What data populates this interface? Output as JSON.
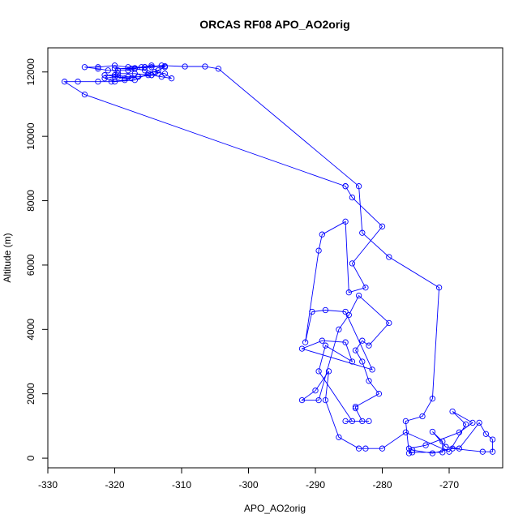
{
  "chart_data": {
    "type": "scatter",
    "title": "ORCAS RF08 APO_AO2orig",
    "xlabel": "APO_AO2orig",
    "ylabel": "Altitude (m)",
    "xlim": [
      -330,
      -262
    ],
    "ylim": [
      -300,
      12750
    ],
    "x_ticks": [
      -330,
      -320,
      -310,
      -300,
      -290,
      -280,
      -270
    ],
    "y_ticks": [
      0,
      2000,
      4000,
      6000,
      8000,
      10000,
      12000
    ],
    "grid": false,
    "legend": "none",
    "line_color": "#0000ff",
    "marker_color": "#0000ff",
    "marker": "open-circle",
    "connected": true,
    "series": [
      {
        "x": [
          -312.5,
          -315.5,
          -317.5,
          -320.0,
          -317.0,
          -314.5,
          -315.5,
          -313.0,
          -309.5,
          -306.5,
          -304.5,
          -283.5,
          -283.0,
          -279.0,
          -271.5,
          -272.5,
          -274.0,
          -276.5,
          -276.0,
          -275.5,
          -271.0,
          -271.0,
          -272.5,
          -270.5,
          -268.5,
          -265.5,
          -264.5,
          -263.5,
          -263.5,
          -265.0,
          -269.5,
          -272.5,
          -275.5,
          -276.0,
          -273.5,
          -268.5,
          -266.5,
          -269.5,
          -267.5,
          -270.0,
          -276.5,
          -280.0,
          -282.5,
          -283.5,
          -286.5,
          -288.5,
          -288.0,
          -290.0,
          -292.0,
          -289.5,
          -286.5,
          -285.0,
          -283.5,
          -279.0,
          -282.0,
          -283.0,
          -284.0,
          -283.0,
          -282.0,
          -280.5,
          -284.0,
          -284.0,
          -283.0,
          -282.0,
          -285.5,
          -284.5,
          -289.5,
          -288.5,
          -284.5,
          -285.5,
          -289.0,
          -292.0,
          -281.5,
          -285.5,
          -288.5,
          -290.5,
          -291.5,
          -289.5,
          -289.0,
          -285.5,
          -285.0,
          -282.5,
          -284.5,
          -280.0,
          -284.5,
          -285.5,
          -285.5,
          -324.5,
          -327.5,
          -325.5,
          -322.5,
          -320.5,
          -318.5,
          -317.5,
          -319.5,
          -321.5,
          -320.0,
          -318.0,
          -316.5,
          -315.0,
          -313.5,
          -314.5,
          -316.5,
          -318.5,
          -320.0,
          -321.5,
          -320.0,
          -317.0,
          -315.0,
          -313.5,
          -312.5,
          -314.5,
          -316.0,
          -318.0,
          -320.0,
          -322.5,
          -324.5,
          -322.5,
          -321.0,
          -319.5,
          -318.0,
          -317.0,
          -315.5,
          -314.0,
          -312.5,
          -311.5,
          -313.0,
          -314.5,
          -317.0,
          -319.5
        ],
        "y": [
          12180,
          12150,
          12100,
          12100,
          12120,
          12150,
          12150,
          12200,
          12170,
          12170,
          12100,
          8450,
          7000,
          6250,
          5300,
          1850,
          1300,
          1150,
          150,
          180,
          180,
          520,
          820,
          350,
          300,
          1100,
          750,
          580,
          200,
          200,
          300,
          150,
          250,
          300,
          400,
          800,
          1100,
          1450,
          1050,
          200,
          800,
          300,
          300,
          300,
          650,
          1800,
          2700,
          2100,
          1800,
          1800,
          4000,
          4450,
          5050,
          4200,
          3500,
          3650,
          3350,
          3000,
          2400,
          2000,
          1600,
          1550,
          1150,
          1150,
          1150,
          1150,
          2700,
          3500,
          3000,
          3600,
          3650,
          3400,
          2750,
          4550,
          4600,
          4550,
          3600,
          6450,
          6950,
          7350,
          5150,
          5300,
          6050,
          7200,
          8100,
          8450,
          8450,
          11300,
          11700,
          11700,
          11700,
          11700,
          11750,
          11800,
          11850,
          11900,
          11900,
          11850,
          11850,
          11900,
          11950,
          11900,
          11850,
          11800,
          11850,
          11800,
          11700,
          11750,
          11950,
          12050,
          12150,
          12200,
          12150,
          12150,
          12200,
          12150,
          12150,
          12100,
          12050,
          12050,
          12050,
          12100,
          12050,
          12000,
          11950,
          11800,
          11850,
          11900,
          11950,
          11950
        ]
      }
    ]
  }
}
